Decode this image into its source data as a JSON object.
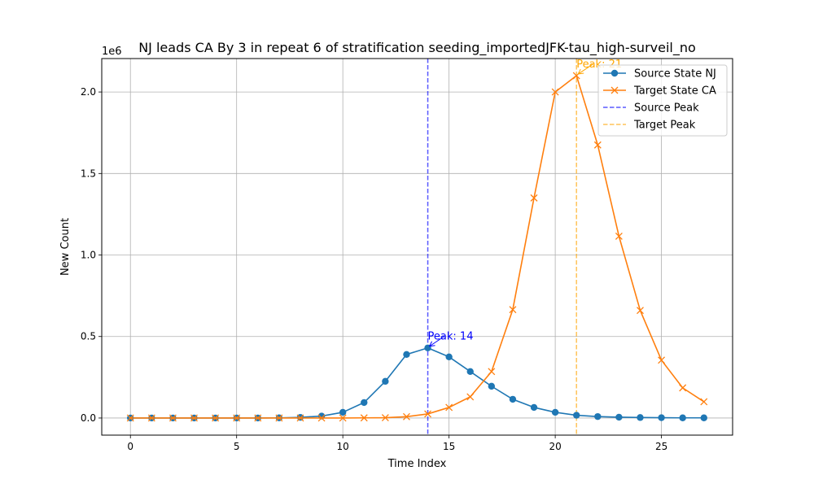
{
  "chart_data": {
    "type": "line",
    "title": "NJ leads CA By 3 in repeat 6 of stratification seeding_importedJFK-tau_high-surveil_no",
    "xlabel": "Time Index",
    "ylabel": "New Count",
    "y_offset_label": "1e6",
    "xlim": [
      -1.35,
      28.35
    ],
    "ylim": [
      -0.105,
      2.205
    ],
    "x_ticks": [
      0,
      5,
      10,
      15,
      20,
      25
    ],
    "x_tick_labels": [
      "0",
      "5",
      "10",
      "15",
      "20",
      "25"
    ],
    "y_ticks": [
      0,
      0.5,
      1.0,
      1.5,
      2.0
    ],
    "y_tick_labels": [
      "0.0",
      "0.5",
      "1.0",
      "1.5",
      "2.0"
    ],
    "y_unit": "millions",
    "grid": true,
    "legend_position": "top-right",
    "x": [
      0,
      1,
      2,
      3,
      4,
      5,
      6,
      7,
      8,
      9,
      10,
      11,
      12,
      13,
      14,
      15,
      16,
      17,
      18,
      19,
      20,
      21,
      22,
      23,
      24,
      25,
      26,
      27
    ],
    "series": [
      {
        "name": "Source State NJ",
        "color": "#1f77b4",
        "marker": "circle",
        "values": [
          0,
          0,
          0,
          0,
          0,
          0,
          0,
          0.001,
          0.004,
          0.012,
          0.035,
          0.095,
          0.225,
          0.39,
          0.43,
          0.375,
          0.285,
          0.195,
          0.115,
          0.065,
          0.035,
          0.017,
          0.009,
          0.005,
          0.003,
          0.002,
          0.001,
          0.001
        ]
      },
      {
        "name": "Target State CA",
        "color": "#ff7f0e",
        "marker": "x",
        "values": [
          0,
          0,
          0,
          0,
          0,
          0,
          0,
          0,
          0,
          0,
          0,
          0.001,
          0.002,
          0.008,
          0.025,
          0.065,
          0.13,
          0.285,
          0.665,
          1.35,
          2.0,
          2.1,
          1.675,
          1.115,
          0.66,
          0.355,
          0.185,
          0.1
        ]
      }
    ],
    "reference_lines": [
      {
        "name": "Source Peak",
        "x": 14,
        "color": "#0000ff",
        "style": "dashed"
      },
      {
        "name": "Target Peak",
        "x": 21,
        "color": "#ffa500",
        "style": "dashed"
      }
    ],
    "annotations": [
      {
        "text": "Peak: 14",
        "x": 14,
        "y": 0.43,
        "color": "#0000ff"
      },
      {
        "text": "Peak: 21",
        "x": 21,
        "y": 2.1,
        "color": "#ffa500"
      }
    ]
  }
}
